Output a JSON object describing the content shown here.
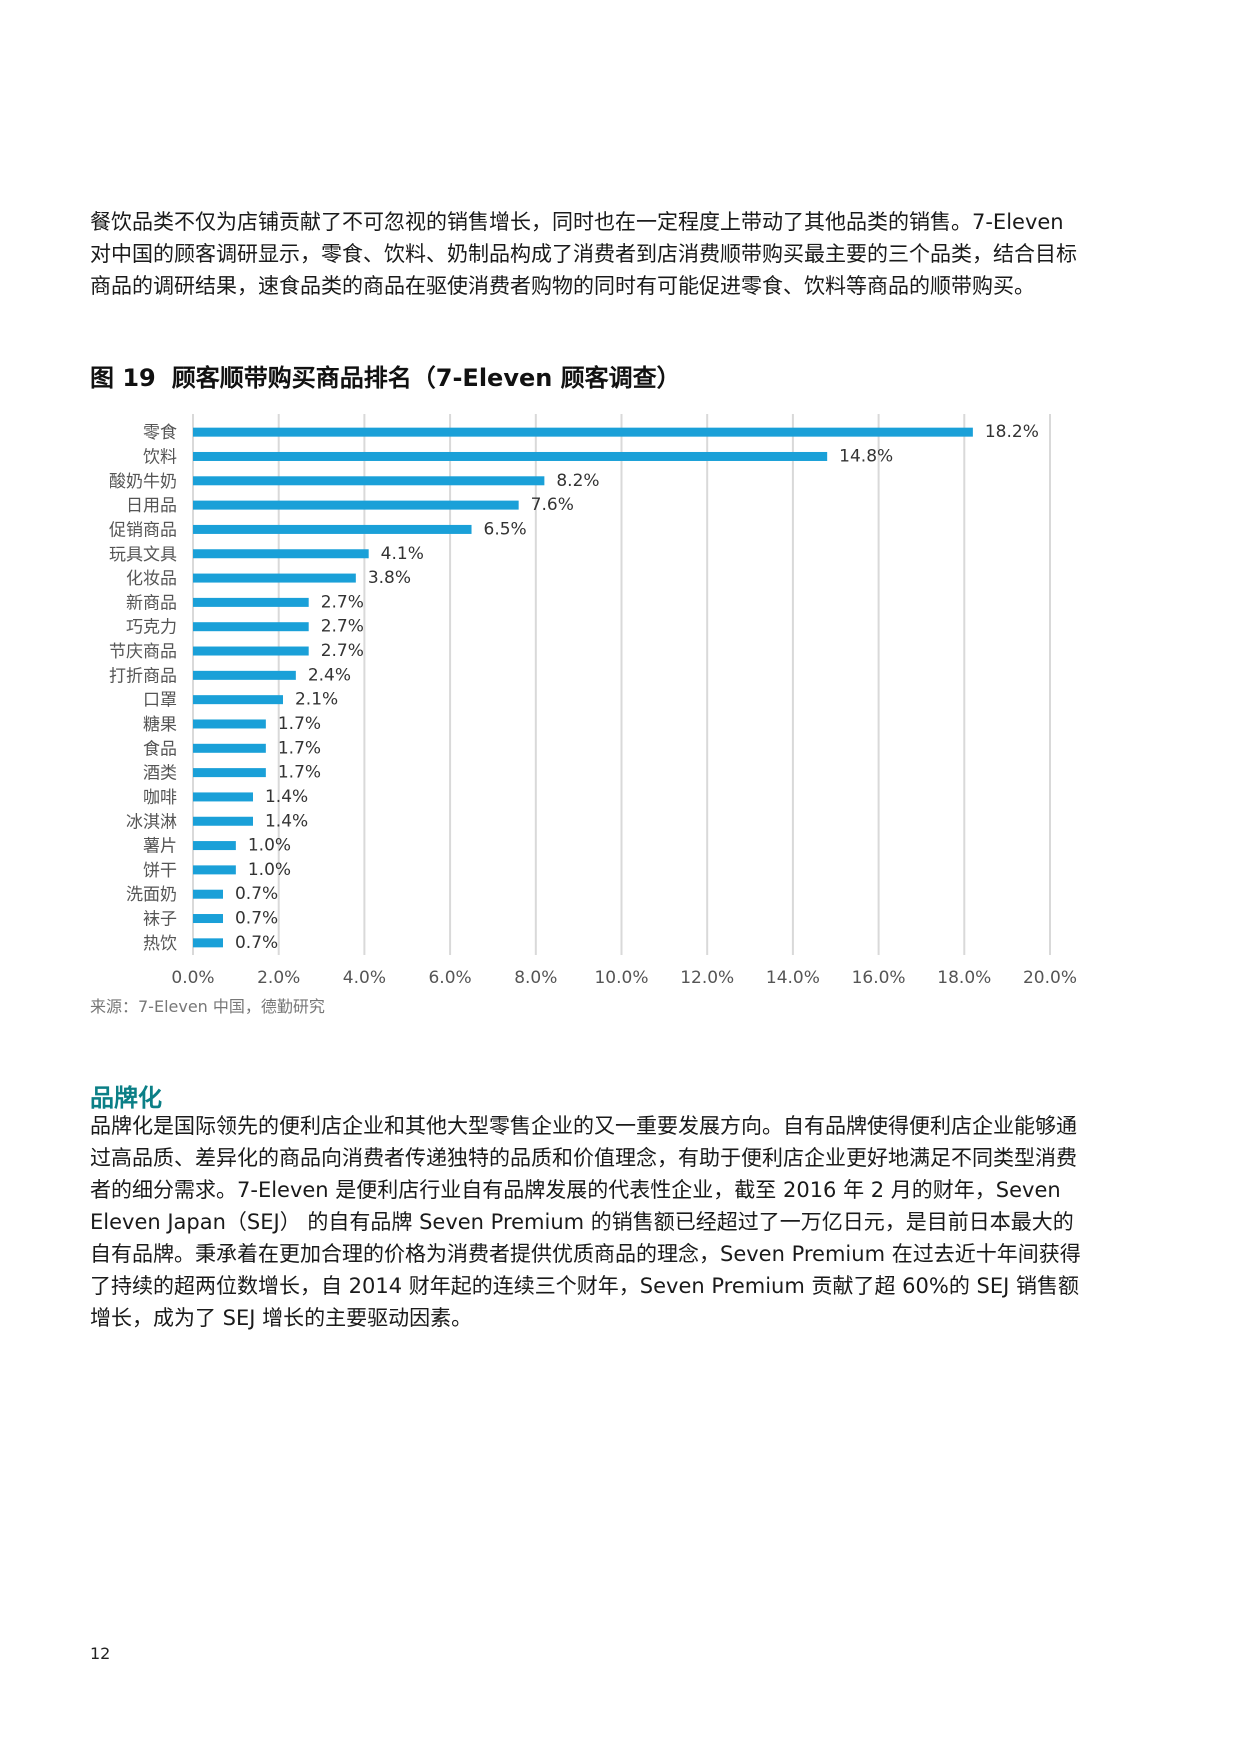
{
  "intro_paragraph": "餐饮品类不仅为店铺贡献了不可忽视的销售增长，同时也在一定程度上带动了其他品类的销售。7-Eleven 对中国的顾客调研显示，零食、饮料、奶制品构成了消费者到店消费顺带购买最主要的三个品类，结合目标商品的调研结果，速食品类的商品在驱使消费者购物的同时有可能促进零食、饮料等商品的顺带购买。",
  "figure": {
    "label": "图 19",
    "title": "顾客顺带购买商品排名（7-Eleven 顾客调查）",
    "source": "来源：7-Eleven 中国，德勤研究"
  },
  "chart_data": {
    "type": "bar",
    "orientation": "horizontal",
    "title": "顾客顺带购买商品排名（7-Eleven 顾客调查）",
    "categories": [
      "零食",
      "饮料",
      "酸奶牛奶",
      "日用品",
      "促销商品",
      "玩具文具",
      "化妆品",
      "新商品",
      "巧克力",
      "节庆商品",
      "打折商品",
      "口罩",
      "糖果",
      "食品",
      "酒类",
      "咖啡",
      "冰淇淋",
      "薯片",
      "饼干",
      "洗面奶",
      "袜子",
      "热饮"
    ],
    "values": [
      18.2,
      14.8,
      8.2,
      7.6,
      6.5,
      4.1,
      3.8,
      2.7,
      2.7,
      2.7,
      2.4,
      2.1,
      1.7,
      1.7,
      1.7,
      1.4,
      1.4,
      1.0,
      1.0,
      0.7,
      0.7,
      0.7
    ],
    "value_labels": [
      "18.2%",
      "14.8%",
      "8.2%",
      "7.6%",
      "6.5%",
      "4.1%",
      "3.8%",
      "2.7%",
      "2.7%",
      "2.7%",
      "2.4%",
      "2.1%",
      "1.7%",
      "1.7%",
      "1.7%",
      "1.4%",
      "1.4%",
      "1.0%",
      "1.0%",
      "0.7%",
      "0.7%",
      "0.7%"
    ],
    "xticks": [
      "0.0%",
      "2.0%",
      "4.0%",
      "6.0%",
      "8.0%",
      "10.0%",
      "12.0%",
      "14.0%",
      "16.0%",
      "18.0%",
      "20.0%"
    ],
    "xlim": [
      0,
      20
    ],
    "grid": true,
    "bar_color": "#1aa0d8",
    "grid_color": "#d9d9d9"
  },
  "section": {
    "heading": "品牌化",
    "paragraph": "品牌化是国际领先的便利店企业和其他大型零售企业的又一重要发展方向。自有品牌使得便利店企业能够通过高品质、差异化的商品向消费者传递独特的品质和价值理念，有助于便利店企业更好地满足不同类型消费者的细分需求。7-Eleven 是便利店行业自有品牌发展的代表性企业，截至 2016 年 2 月的财年，Seven Eleven Japan（SEJ） 的自有品牌 Seven Premium 的销售额已经超过了一万亿日元，是目前日本最大的自有品牌。秉承着在更加合理的价格为消费者提供优质商品的理念，Seven Premium 在过去近十年间获得了持续的超两位数增长，自 2014 财年起的连续三个财年，Seven Premium 贡献了超 60%的 SEJ 销售额增长，成为了 SEJ 增长的主要驱动因素。"
  },
  "page_number": "12"
}
